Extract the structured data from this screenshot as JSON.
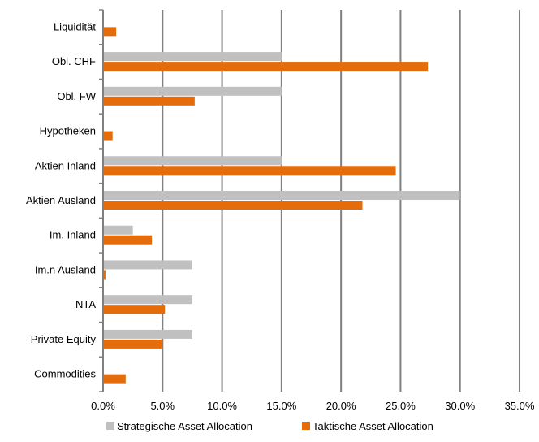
{
  "chart_data": {
    "type": "bar",
    "orientation": "horizontal",
    "categories": [
      "Liquidität",
      "Obl. CHF",
      "Obl. FW",
      "Hypotheken",
      "Aktien Inland",
      "Aktien Ausland",
      "Im. Inland",
      "Im.n Ausland",
      "NTA",
      "Private Equity",
      "Commodities"
    ],
    "series": [
      {
        "name": "Strategische Asset Allocation",
        "color": "#c0c0c0",
        "values": [
          0.0,
          15.0,
          15.0,
          0.0,
          15.0,
          30.0,
          2.5,
          7.5,
          7.5,
          7.5,
          0.0
        ]
      },
      {
        "name": "Taktische Asset Allocation",
        "color": "#e46c0a",
        "values": [
          1.1,
          27.3,
          7.7,
          0.8,
          24.6,
          21.8,
          4.1,
          0.2,
          5.2,
          5.0,
          1.9
        ]
      }
    ],
    "xlim": [
      0,
      35
    ],
    "xticks": [
      "0.0%",
      "5.0%",
      "10.0%",
      "15.0%",
      "20.0%",
      "25.0%",
      "30.0%",
      "35.0%"
    ],
    "xtick_values": [
      0,
      5,
      10,
      15,
      20,
      25,
      30,
      35
    ],
    "grid": "vertical",
    "legend_position": "bottom",
    "title": "",
    "xlabel": "",
    "ylabel": ""
  }
}
